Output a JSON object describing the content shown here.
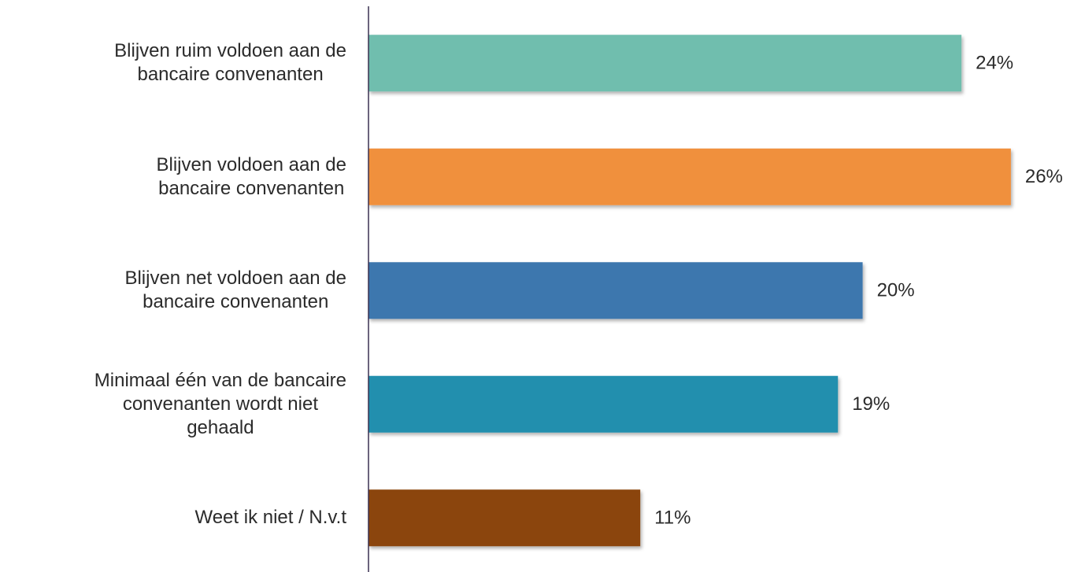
{
  "chart_data": {
    "type": "barh",
    "categories": [
      [
        "Blijven ruim voldoen aan de",
        "bancaire convenanten"
      ],
      [
        "Blijven voldoen aan de",
        "bancaire convenanten"
      ],
      [
        "Blijven net voldoen aan de",
        "bancaire convenanten"
      ],
      [
        "Minimaal één van de bancaire",
        "convenanten wordt niet",
        "gehaald"
      ],
      [
        "Weet ik niet / N.v.t"
      ]
    ],
    "values": [
      24,
      26,
      20,
      19,
      11
    ],
    "value_labels": [
      "24%",
      "26%",
      "20%",
      "19%",
      "11%"
    ],
    "colors": [
      "#6fbeae",
      "#f0903c",
      "#3d77ae",
      "#208fae",
      "#8b4407"
    ],
    "xlim": [
      0,
      29
    ]
  }
}
